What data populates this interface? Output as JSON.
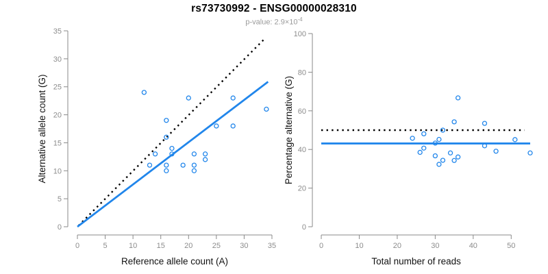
{
  "header": {
    "title": "rs73730992 - ENSG00000028310",
    "subtitle_prefix": "p-value: 2.9×10",
    "subtitle_exponent": "-4"
  },
  "colors": {
    "accent_blue": "#2186EB",
    "axis_gray": "#888888",
    "tick_gray": "#8C8C8C",
    "subtitle_gray": "#9A9A9A",
    "title_black": "#000000"
  },
  "chart_data": [
    {
      "type": "scatter",
      "name": "allele-counts-scatter",
      "xlabel": "Reference allele count (A)",
      "ylabel": "Alternative allele count (G)",
      "xlim": [
        0,
        35
      ],
      "ylim": [
        0,
        35
      ],
      "xticks": [
        0,
        5,
        10,
        15,
        20,
        25,
        30,
        35
      ],
      "yticks": [
        0,
        5,
        10,
        15,
        20,
        25,
        30,
        35
      ],
      "grid": false,
      "points": [
        [
          12,
          24
        ],
        [
          13,
          11
        ],
        [
          14,
          13
        ],
        [
          16,
          10
        ],
        [
          16,
          11
        ],
        [
          16,
          16
        ],
        [
          16,
          19
        ],
        [
          17,
          13
        ],
        [
          17,
          14
        ],
        [
          19,
          11
        ],
        [
          20,
          23
        ],
        [
          21,
          10
        ],
        [
          21,
          11
        ],
        [
          21,
          13
        ],
        [
          23,
          12
        ],
        [
          23,
          13
        ],
        [
          25,
          18
        ],
        [
          28,
          18
        ],
        [
          28,
          23
        ],
        [
          34,
          21
        ]
      ],
      "lines": [
        {
          "name": "identity-line",
          "style": "dotted",
          "color": "black",
          "x": [
            0.2,
            33.8
          ],
          "y": [
            0.2,
            33.7
          ]
        },
        {
          "name": "fit-line",
          "style": "solid",
          "color": "blue",
          "x": [
            0,
            34.3
          ],
          "y": [
            0,
            25.9
          ]
        }
      ]
    },
    {
      "type": "scatter",
      "name": "percentage-vs-reads-scatter",
      "xlabel": "Total number of reads",
      "ylabel": "Percentage alternative (G)",
      "xlim": [
        0,
        55
      ],
      "ylim": [
        0,
        100
      ],
      "xticks": [
        0,
        10,
        20,
        30,
        40,
        50
      ],
      "yticks": [
        0,
        20,
        40,
        60,
        80,
        100
      ],
      "grid": false,
      "points": [
        [
          36,
          66.7
        ],
        [
          24,
          45.8
        ],
        [
          27,
          48.1
        ],
        [
          26,
          38.5
        ],
        [
          27,
          40.7
        ],
        [
          32,
          50.0
        ],
        [
          35,
          54.3
        ],
        [
          30,
          43.3
        ],
        [
          31,
          45.2
        ],
        [
          30,
          36.7
        ],
        [
          43,
          53.5
        ],
        [
          31,
          32.3
        ],
        [
          32,
          34.4
        ],
        [
          34,
          38.2
        ],
        [
          35,
          34.3
        ],
        [
          36,
          36.1
        ],
        [
          43,
          41.9
        ],
        [
          46,
          39.1
        ],
        [
          51,
          45.1
        ],
        [
          55,
          38.2
        ]
      ],
      "lines": [
        {
          "name": "expected-50pct-line",
          "style": "dotted",
          "color": "black",
          "x": [
            0,
            53.5
          ],
          "y": [
            50,
            50
          ]
        },
        {
          "name": "mean-percentage-line",
          "style": "solid",
          "color": "blue",
          "x": [
            0,
            55
          ],
          "y": [
            43.1,
            43.1
          ]
        }
      ]
    }
  ]
}
